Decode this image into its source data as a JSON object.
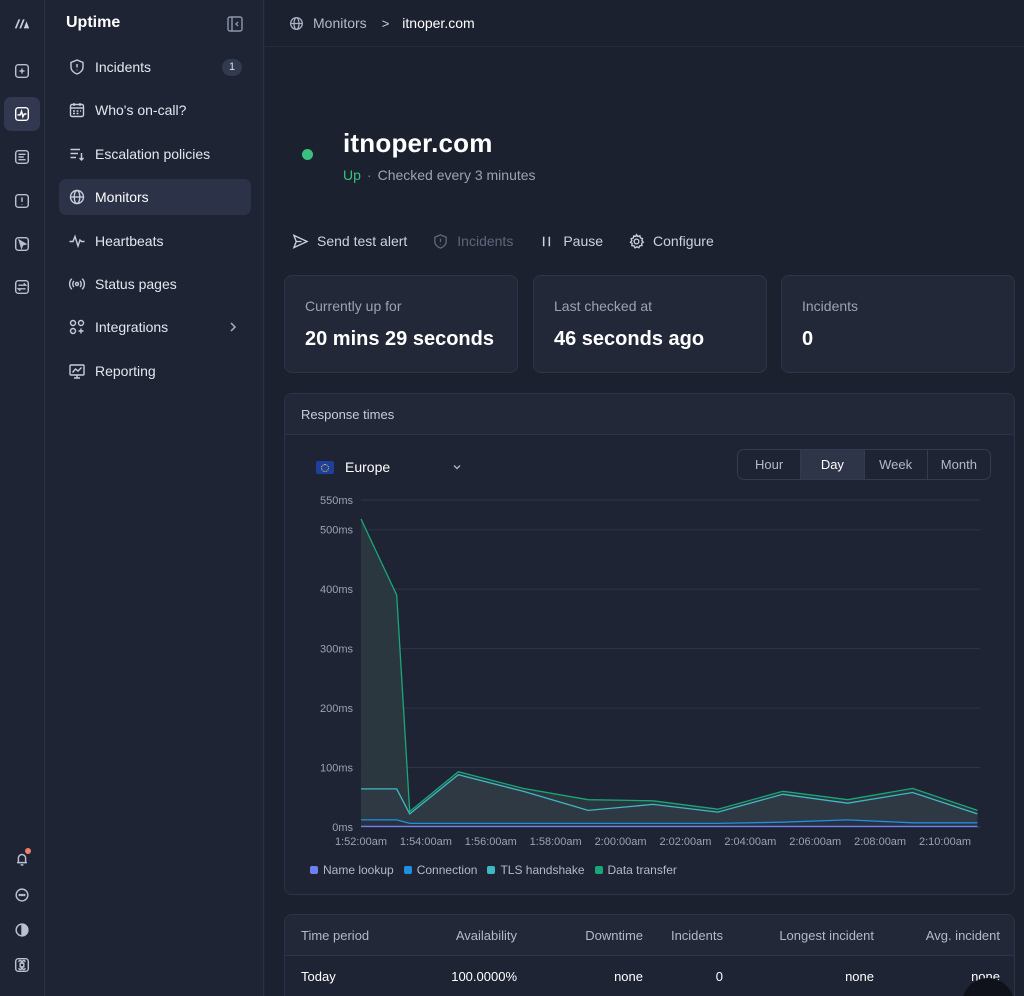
{
  "sidebar": {
    "title": "Uptime",
    "items": [
      {
        "label": "Incidents",
        "badge": "1"
      },
      {
        "label": "Who's on-call?"
      },
      {
        "label": "Escalation policies"
      },
      {
        "label": "Monitors"
      },
      {
        "label": "Heartbeats"
      },
      {
        "label": "Status pages"
      },
      {
        "label": "Integrations"
      },
      {
        "label": "Reporting"
      }
    ]
  },
  "breadcrumb": {
    "root": "Monitors",
    "current": "itnoper.com"
  },
  "monitor": {
    "name": "itnoper.com",
    "status": "Up",
    "check_text": "Checked every 3 minutes",
    "status_color": "#3bc17e"
  },
  "actions": {
    "send_test_alert": "Send test alert",
    "incidents": "Incidents",
    "pause": "Pause",
    "configure": "Configure"
  },
  "stats": [
    {
      "label": "Currently up for",
      "value": "20 mins 29 seconds"
    },
    {
      "label": "Last checked at",
      "value": "46 seconds ago"
    },
    {
      "label": "Incidents",
      "value": "0"
    }
  ],
  "chart": {
    "title": "Response times",
    "region": "Europe",
    "ranges": [
      "Hour",
      "Day",
      "Week",
      "Month"
    ],
    "active_range": "Day"
  },
  "chart_data": {
    "type": "area",
    "x": [
      "1:52:00am",
      "1:53:06am",
      "1:53:30am",
      "1:55:00am",
      "1:57:00am",
      "1:59:00am",
      "2:01:00am",
      "2:03:00am",
      "2:05:00am",
      "2:07:00am",
      "2:09:00am",
      "2:11:00am"
    ],
    "xticks": [
      "1:52:00am",
      "1:54:00am",
      "1:56:00am",
      "1:58:00am",
      "2:00:00am",
      "2:02:00am",
      "2:04:00am",
      "2:06:00am",
      "2:08:00am",
      "2:10:00am"
    ],
    "yticks": [
      "0ms",
      "100ms",
      "200ms",
      "300ms",
      "400ms",
      "500ms",
      "550ms"
    ],
    "ylim": [
      0,
      550
    ],
    "series": [
      {
        "name": "Name lookup",
        "color": "#6f7ff0",
        "values": [
          1,
          1,
          1,
          1,
          1,
          1,
          1,
          1,
          1,
          1,
          1,
          1
        ]
      },
      {
        "name": "Connection",
        "color": "#1f8fe0",
        "values": [
          12,
          12,
          6,
          6,
          6,
          6,
          6,
          6,
          8,
          12,
          7,
          7
        ]
      },
      {
        "name": "TLS handshake",
        "color": "#3fb8c2",
        "values": [
          64,
          64,
          22,
          88,
          60,
          28,
          38,
          25,
          55,
          40,
          58,
          22
        ]
      },
      {
        "name": "Data transfer",
        "color": "#18a878",
        "values": [
          518,
          390,
          26,
          93,
          65,
          46,
          44,
          30,
          60,
          46,
          65,
          28
        ]
      }
    ],
    "legend": "bottom-left"
  },
  "table": {
    "headers": [
      "Time period",
      "Availability",
      "Downtime",
      "Incidents",
      "Longest incident",
      "Avg. incident"
    ],
    "rows": [
      [
        "Today",
        "100.0000%",
        "none",
        "0",
        "none",
        "none"
      ]
    ]
  }
}
